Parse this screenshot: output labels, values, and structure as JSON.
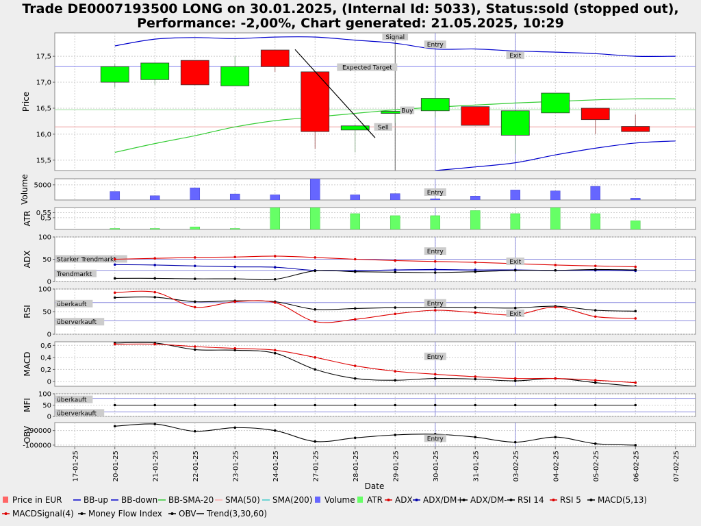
{
  "title_line1": "Trade DE0007193500 LONG on 30.01.2025, (Internal Id: 5033), Status:sold (stopped out),",
  "title_line2": "Performance: -2,00%, Chart generated: 21.05.2025, 10:29",
  "xlabel": "Date",
  "dates": [
    "17-01-25",
    "20-01-25",
    "21-01-25",
    "22-01-25",
    "23-01-25",
    "24-01-25",
    "27-01-25",
    "28-01-25",
    "29-01-25",
    "30-01-25",
    "31-01-25",
    "03-02-25",
    "04-02-25",
    "05-02-25",
    "06-02-25",
    "07-02-25"
  ],
  "colors": {
    "up": "#00ff00",
    "down": "#ff0000",
    "bb": "#0000cc",
    "sma20": "#33cc33",
    "grid": "#cccccc",
    "adx": "#dd0000",
    "dmplus": "#0000aa",
    "dmminus": "#000000",
    "volume": "#6666ff",
    "atr": "#66ff66"
  },
  "chart_data": {
    "type": "candlestick",
    "price": {
      "ylabel": "Price",
      "ticks": [
        "15,5",
        "16,0",
        "16,5",
        "17,0",
        "17,5"
      ],
      "tick_values": [
        15.5,
        16.0,
        16.5,
        17.0,
        17.5
      ],
      "ylim": [
        15.3,
        17.95
      ],
      "candles": [
        {
          "date": "20-01-25",
          "open": 17.0,
          "high": 17.35,
          "low": 16.9,
          "close": 17.3
        },
        {
          "date": "21-01-25",
          "open": 17.05,
          "high": 17.38,
          "low": 16.95,
          "close": 17.37
        },
        {
          "date": "22-01-25",
          "open": 17.42,
          "high": 17.42,
          "low": 16.95,
          "close": 16.95
        },
        {
          "date": "23-01-25",
          "open": 16.93,
          "high": 17.5,
          "low": 16.93,
          "close": 17.3
        },
        {
          "date": "24-01-25",
          "open": 17.62,
          "high": 17.62,
          "low": 17.2,
          "close": 17.3
        },
        {
          "date": "27-01-25",
          "open": 17.2,
          "high": 17.2,
          "low": 15.72,
          "close": 16.05
        },
        {
          "date": "28-01-25",
          "open": 16.08,
          "high": 16.18,
          "low": 15.65,
          "close": 16.16
        },
        {
          "date": "29-01-25",
          "open": 16.4,
          "high": 16.45,
          "low": 16.22,
          "close": 16.44
        },
        {
          "date": "30-01-25",
          "open": 16.45,
          "high": 16.69,
          "low": 16.32,
          "close": 16.69
        },
        {
          "date": "31-01-25",
          "open": 16.53,
          "high": 16.53,
          "low": 16.17,
          "close": 16.17
        },
        {
          "date": "03-02-25",
          "open": 15.98,
          "high": 16.45,
          "low": 15.62,
          "close": 16.45
        },
        {
          "date": "04-02-25",
          "open": 16.41,
          "high": 16.79,
          "low": 16.41,
          "close": 16.79
        },
        {
          "date": "05-02-25",
          "open": 16.5,
          "high": 16.5,
          "low": 16.0,
          "close": 16.28
        },
        {
          "date": "06-02-25",
          "open": 16.15,
          "high": 16.38,
          "low": 16.05,
          "close": 16.05
        }
      ],
      "bb_up": [
        17.7,
        17.83,
        17.86,
        17.84,
        17.87,
        17.87,
        17.81,
        17.75,
        17.64,
        17.64,
        17.6,
        17.58,
        17.55,
        17.5,
        17.5
      ],
      "bb_down": [
        null,
        null,
        null,
        null,
        null,
        null,
        null,
        null,
        15.3,
        15.37,
        15.45,
        15.6,
        15.73,
        15.83,
        15.87
      ],
      "sma20": [
        15.65,
        15.82,
        15.97,
        16.14,
        16.26,
        16.33,
        16.4,
        16.47,
        16.52,
        16.56,
        16.6,
        16.63,
        16.66,
        16.68,
        16.68
      ],
      "hlines": [
        {
          "value": 17.3,
          "color": "#8888ee"
        },
        {
          "value": 16.47,
          "color": "#99dd99"
        },
        {
          "value": 16.14,
          "color": "#ee9999"
        }
      ],
      "trend": {
        "from": {
          "x": 5.5,
          "y": 17.63
        },
        "to": {
          "x": 7.5,
          "y": 15.93
        }
      },
      "annotations": [
        {
          "text": "Signal",
          "x": 8.0,
          "y": 17.86
        },
        {
          "text": "Entry",
          "x": 9.0,
          "y": 17.71
        },
        {
          "text": "Expected Target",
          "x": 7.3,
          "y": 17.27
        },
        {
          "text": "Exit",
          "x": 11.0,
          "y": 17.5
        },
        {
          "text": "Buy",
          "x": 8.3,
          "y": 16.44
        },
        {
          "text": "Sell",
          "x": 7.7,
          "y": 16.12
        }
      ]
    },
    "volume": {
      "ylabel": "Volume",
      "ticks": [
        "5000"
      ],
      "tick_values": [
        5000
      ],
      "ylim": [
        0,
        7000
      ],
      "values": [
        2800,
        1400,
        4000,
        2000,
        1700,
        7000,
        1700,
        2100,
        400,
        1300,
        3300,
        3000,
        4500,
        600
      ]
    },
    "atr": {
      "ylabel": "ATR",
      "ticks": [
        "0,5",
        "0,55"
      ],
      "tick_values": [
        0.5,
        0.55
      ],
      "ylim": [
        0.385,
        0.6
      ],
      "values": [
        0.395,
        0.395,
        0.41,
        0.395,
        0.6,
        0.6,
        0.54,
        0.52,
        0.52,
        0.57,
        0.54,
        0.6,
        0.54,
        0.47
      ]
    },
    "adx": {
      "ylabel": "ADX",
      "ticks": [
        "0",
        "50",
        "100"
      ],
      "tick_values": [
        0,
        50,
        100
      ],
      "ylim": [
        0,
        100
      ],
      "adx": [
        50,
        52,
        54,
        55,
        57,
        54,
        50,
        47,
        45,
        43,
        40,
        37,
        35,
        33
      ],
      "dmplus": [
        38,
        37,
        35,
        33,
        32,
        25,
        24,
        26,
        27,
        26,
        26,
        25,
        25,
        24
      ],
      "dmminus": [
        7,
        7,
        6,
        6,
        5,
        24,
        22,
        21,
        20,
        22,
        25,
        25,
        27,
        26
      ],
      "labels": [
        {
          "text": "Starker Trendmarkt",
          "value": 50
        },
        {
          "text": "Trendmarkt",
          "value": 25
        }
      ]
    },
    "rsi": {
      "ylabel": "RSI",
      "ticks": [
        "0",
        "50",
        "100"
      ],
      "tick_values": [
        0,
        50,
        100
      ],
      "ylim": [
        0,
        100
      ],
      "rsi14": [
        81,
        82,
        72,
        74,
        72,
        55,
        57,
        59,
        60,
        59,
        58,
        62,
        53,
        51
      ],
      "rsi5": [
        92,
        93,
        60,
        72,
        70,
        28,
        33,
        45,
        53,
        48,
        43,
        60,
        39,
        35
      ],
      "labels": [
        {
          "text": "überkauft",
          "value": 70
        },
        {
          "text": "überverkauft",
          "value": 30
        }
      ]
    },
    "macd": {
      "ylabel": "MACD",
      "ticks": [
        "0",
        "0,2",
        "0,4",
        "0,6"
      ],
      "tick_values": [
        0,
        0.2,
        0.4,
        0.6
      ],
      "ylim": [
        -0.08,
        0.66
      ],
      "macd": [
        0.64,
        0.64,
        0.53,
        0.52,
        0.47,
        0.2,
        0.05,
        0.02,
        0.05,
        0.04,
        0.01,
        0.05,
        -0.02,
        -0.08
      ],
      "signal": [
        0.62,
        0.62,
        0.58,
        0.55,
        0.52,
        0.4,
        0.26,
        0.17,
        0.12,
        0.08,
        0.05,
        0.05,
        0.02,
        -0.02
      ]
    },
    "mfi": {
      "ylabel": "MFI",
      "ticks": [
        "0",
        "50",
        "100"
      ],
      "tick_values": [
        0,
        50,
        100
      ],
      "ylim": [
        0,
        100
      ],
      "values": [
        50,
        50,
        50,
        50,
        50,
        50,
        50,
        50,
        50,
        50,
        50,
        50,
        50,
        50
      ],
      "labels": [
        {
          "text": "überkauft",
          "value": 80
        },
        {
          "text": "überverkauft",
          "value": 20
        }
      ]
    },
    "obv": {
      "ylabel": "OBV",
      "ticks": [
        "-100000",
        "-90000"
      ],
      "tick_values": [
        -100000,
        -90000
      ],
      "ylim": [
        -101000,
        -84500
      ],
      "values": [
        -87000,
        -85500,
        -90500,
        -88000,
        -90000,
        -97500,
        -95000,
        -93000,
        -92500,
        -94500,
        -98000,
        -94500,
        -99000,
        -100000
      ]
    },
    "markers": {
      "entry": "Entry",
      "exit": "Exit"
    }
  },
  "legend": [
    {
      "label": "Price in EUR",
      "kind": "box",
      "color": "#ff6666"
    },
    {
      "label": "BB-up",
      "kind": "line",
      "color": "#0000cc"
    },
    {
      "label": "BB-down",
      "kind": "line",
      "color": "#0000cc"
    },
    {
      "label": "BB-SMA-20",
      "kind": "line",
      "color": "#33cc33"
    },
    {
      "label": "SMA(50)",
      "kind": "line",
      "color": "#ffaaaa"
    },
    {
      "label": "SMA(200)",
      "kind": "line",
      "color": "#44cccc"
    },
    {
      "label": "Volume",
      "kind": "box",
      "color": "#6666ff"
    },
    {
      "label": "ATR",
      "kind": "box",
      "color": "#66ff66"
    },
    {
      "label": "ADX",
      "kind": "dotline",
      "color": "#dd0000"
    },
    {
      "label": "ADX/DM+",
      "kind": "dotline",
      "color": "#0000aa"
    },
    {
      "label": "ADX/DM-",
      "kind": "dotline",
      "color": "#000000"
    },
    {
      "label": "RSI 14",
      "kind": "dotline",
      "color": "#000000"
    },
    {
      "label": "RSI 5",
      "kind": "dotline",
      "color": "#dd0000"
    },
    {
      "label": "MACD(5,13)",
      "kind": "dotline",
      "color": "#000000"
    },
    {
      "label": "MACDSignal(4)",
      "kind": "dotline",
      "color": "#dd0000"
    },
    {
      "label": "Money Flow Index",
      "kind": "dotline",
      "color": "#000000"
    },
    {
      "label": "OBV",
      "kind": "dotline",
      "color": "#000000"
    },
    {
      "label": "Trend(3,30,60)",
      "kind": "line",
      "color": "#000000"
    }
  ]
}
